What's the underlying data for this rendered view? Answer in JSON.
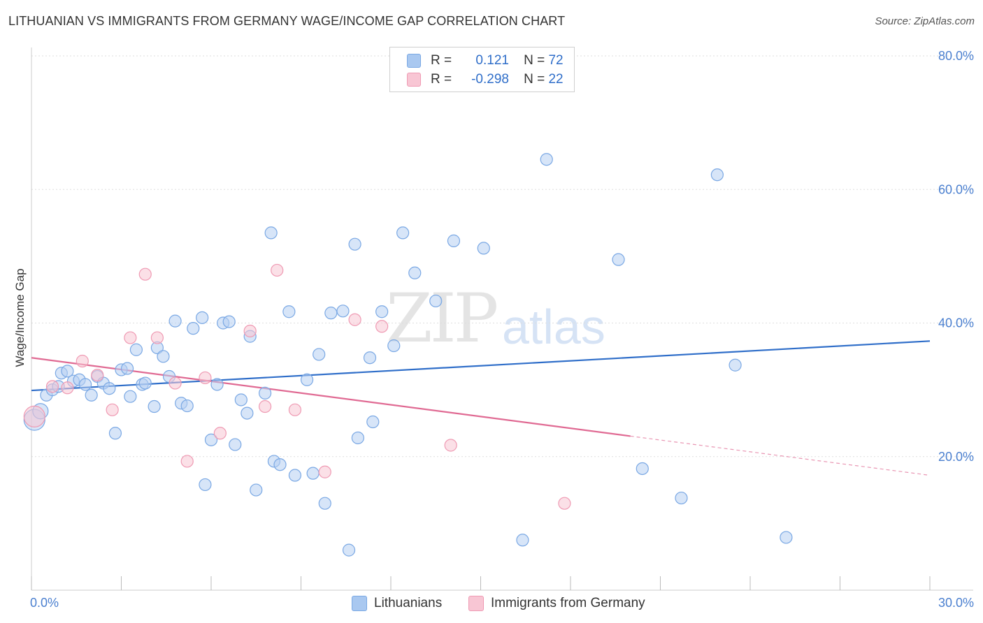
{
  "title": "LITHUANIAN VS IMMIGRANTS FROM GERMANY WAGE/INCOME GAP CORRELATION CHART",
  "source": "Source: ZipAtlas.com",
  "legend": {
    "r_label": "R =",
    "n_label": "N =",
    "rows": [
      {
        "r": "0.121",
        "n": "72",
        "color": "#a9c8f0",
        "border": "#7aa8e4"
      },
      {
        "r": "-0.298",
        "n": "22",
        "color": "#f8c6d4",
        "border": "#ef9ab3"
      }
    ]
  },
  "watermark": {
    "zip": "ZIP",
    "atlas": "atlas"
  },
  "chart_data": {
    "type": "scatter",
    "xlabel": "",
    "ylabel": "Wage/Income Gap",
    "xlim": [
      0,
      30
    ],
    "ylim": [
      0,
      80
    ],
    "x_tick_labels": [
      "0.0%",
      "30.0%"
    ],
    "y_ticks": [
      20,
      40,
      60,
      80
    ],
    "y_tick_labels": [
      "20.0%",
      "40.0%",
      "60.0%",
      "80.0%"
    ],
    "grid": true,
    "legend_position": "top-center",
    "series": [
      {
        "name": "Lithuanians",
        "color": "#7aa8e4",
        "fill": "#b7d0f2",
        "trend": {
          "x0": 0,
          "y0": 29.9,
          "x1": 30,
          "y1": 37.3,
          "dashed_from": null
        },
        "points": [
          [
            0.1,
            25.5
          ],
          [
            0.3,
            26.8
          ],
          [
            0.5,
            29.2
          ],
          [
            0.7,
            30.0
          ],
          [
            0.9,
            30.5
          ],
          [
            1.0,
            32.5
          ],
          [
            1.2,
            32.8
          ],
          [
            1.4,
            31.3
          ],
          [
            1.6,
            31.5
          ],
          [
            1.8,
            30.8
          ],
          [
            2.0,
            29.2
          ],
          [
            2.2,
            32.0
          ],
          [
            2.4,
            31.0
          ],
          [
            2.6,
            30.2
          ],
          [
            2.8,
            23.5
          ],
          [
            3.0,
            33.0
          ],
          [
            3.2,
            33.2
          ],
          [
            3.3,
            29.0
          ],
          [
            3.5,
            36.0
          ],
          [
            3.7,
            30.8
          ],
          [
            3.8,
            31.0
          ],
          [
            4.1,
            27.5
          ],
          [
            4.2,
            36.3
          ],
          [
            4.4,
            35.0
          ],
          [
            4.6,
            32.0
          ],
          [
            4.8,
            40.3
          ],
          [
            5.0,
            28.0
          ],
          [
            5.2,
            27.6
          ],
          [
            5.4,
            39.2
          ],
          [
            5.7,
            40.8
          ],
          [
            5.8,
            15.8
          ],
          [
            6.0,
            22.5
          ],
          [
            6.2,
            30.8
          ],
          [
            6.4,
            40.0
          ],
          [
            6.6,
            40.2
          ],
          [
            6.8,
            21.8
          ],
          [
            7.0,
            28.5
          ],
          [
            7.2,
            26.5
          ],
          [
            7.3,
            38.0
          ],
          [
            7.5,
            15.0
          ],
          [
            7.8,
            29.5
          ],
          [
            8.0,
            53.5
          ],
          [
            8.1,
            19.3
          ],
          [
            8.3,
            18.8
          ],
          [
            8.6,
            41.7
          ],
          [
            8.8,
            17.2
          ],
          [
            9.2,
            31.5
          ],
          [
            9.4,
            17.5
          ],
          [
            9.6,
            35.3
          ],
          [
            9.8,
            13.0
          ],
          [
            10.0,
            41.5
          ],
          [
            10.4,
            41.8
          ],
          [
            10.6,
            6.0
          ],
          [
            10.8,
            51.8
          ],
          [
            10.9,
            22.8
          ],
          [
            11.3,
            34.8
          ],
          [
            11.4,
            25.2
          ],
          [
            11.7,
            41.7
          ],
          [
            12.1,
            36.6
          ],
          [
            12.4,
            53.5
          ],
          [
            12.8,
            47.5
          ],
          [
            13.5,
            43.3
          ],
          [
            14.1,
            52.3
          ],
          [
            15.1,
            51.2
          ],
          [
            16.4,
            7.5
          ],
          [
            17.2,
            64.5
          ],
          [
            19.6,
            49.5
          ],
          [
            20.4,
            18.2
          ],
          [
            21.7,
            13.8
          ],
          [
            22.9,
            62.2
          ],
          [
            23.5,
            33.7
          ],
          [
            25.2,
            7.9
          ]
        ]
      },
      {
        "name": "Immigrants from Germany",
        "color": "#ef9ab3",
        "fill": "#f8c6d4",
        "trend": {
          "x0": 0,
          "y0": 34.8,
          "x1": 30,
          "y1": 17.2,
          "dashed_from": 20.0
        },
        "points": [
          [
            0.1,
            26.0
          ],
          [
            0.7,
            30.5
          ],
          [
            1.2,
            30.3
          ],
          [
            1.7,
            34.3
          ],
          [
            2.2,
            32.2
          ],
          [
            2.7,
            27.0
          ],
          [
            3.3,
            37.8
          ],
          [
            3.8,
            47.3
          ],
          [
            4.2,
            37.8
          ],
          [
            4.8,
            31.0
          ],
          [
            5.2,
            19.3
          ],
          [
            5.8,
            31.8
          ],
          [
            6.3,
            23.5
          ],
          [
            7.3,
            38.8
          ],
          [
            7.8,
            27.5
          ],
          [
            8.2,
            47.9
          ],
          [
            8.8,
            27.0
          ],
          [
            9.8,
            17.7
          ],
          [
            10.8,
            40.5
          ],
          [
            11.7,
            39.5
          ],
          [
            14.0,
            21.7
          ],
          [
            17.8,
            13.0
          ]
        ]
      }
    ]
  }
}
